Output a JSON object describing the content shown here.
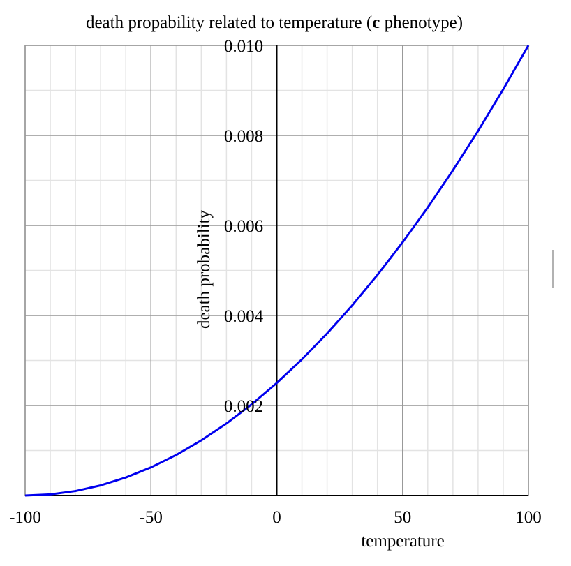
{
  "chart_data": {
    "type": "line",
    "title_parts": {
      "before": "death propability related to temperature (",
      "bold": "c",
      "after": " phenotype)"
    },
    "xlabel": "temperature",
    "ylabel": "death probability",
    "xlim": [
      -100,
      100
    ],
    "ylim": [
      0,
      0.01
    ],
    "x_ticks": [
      {
        "value": -100,
        "label": "-100"
      },
      {
        "value": -50,
        "label": "-50"
      },
      {
        "value": 0,
        "label": "0"
      },
      {
        "value": 50,
        "label": "50"
      },
      {
        "value": 100,
        "label": "100"
      }
    ],
    "y_ticks": [
      {
        "value": 0.002,
        "label": "0.002"
      },
      {
        "value": 0.004,
        "label": "0.004"
      },
      {
        "value": 0.006,
        "label": "0.006"
      },
      {
        "value": 0.008,
        "label": "0.008"
      },
      {
        "value": 0.01,
        "label": "0.010"
      }
    ],
    "x_minor_step": 10,
    "y_minor_step": 0.001,
    "grid": true,
    "series": [
      {
        "color": "#0000ee",
        "x": [
          -100,
          -90,
          -80,
          -70,
          -60,
          -50,
          -40,
          -30,
          -20,
          -10,
          0,
          10,
          20,
          30,
          40,
          50,
          60,
          70,
          80,
          90,
          100
        ],
        "y": [
          0.0,
          2.5e-05,
          0.0001,
          0.000225,
          0.0004,
          0.000625,
          0.0009,
          0.001225,
          0.0016,
          0.002025,
          0.0025,
          0.003025,
          0.0036,
          0.004225,
          0.0049,
          0.005625,
          0.0064,
          0.007225,
          0.0081,
          0.009025,
          0.01
        ]
      }
    ],
    "colors": {
      "major_grid": "#999999",
      "minor_grid": "#e3e3e3",
      "axis": "#000000",
      "frame": "#999999"
    }
  }
}
